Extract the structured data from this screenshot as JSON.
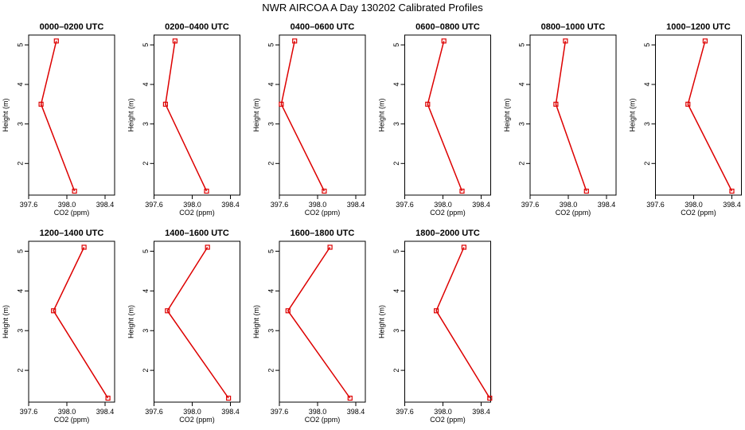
{
  "figure": {
    "title": "NWR AIRCOA A  Day 130202  Calibrated Profiles",
    "series_color": "#dd0000"
  },
  "chart_data": [
    {
      "type": "line",
      "title": "0000–0200 UTC",
      "xlabel": "CO2 (ppm)",
      "ylabel": "Height (m)",
      "xlim": [
        397.6,
        398.5
      ],
      "ylim": [
        1.2,
        5.25
      ],
      "xticks": [
        "397.6",
        "398.0",
        "398.4"
      ],
      "yticks": [
        "2",
        "3",
        "4",
        "5"
      ],
      "x": [
        398.08,
        397.73,
        397.89
      ],
      "y": [
        1.3,
        3.5,
        5.1
      ]
    },
    {
      "type": "line",
      "title": "0200–0400 UTC",
      "xlabel": "CO2 (ppm)",
      "ylabel": "Height (m)",
      "xlim": [
        397.6,
        398.5
      ],
      "ylim": [
        1.2,
        5.25
      ],
      "xticks": [
        "397.6",
        "398.0",
        "398.4"
      ],
      "yticks": [
        "2",
        "3",
        "4",
        "5"
      ],
      "x": [
        398.15,
        397.72,
        397.82
      ],
      "y": [
        1.3,
        3.5,
        5.1
      ]
    },
    {
      "type": "line",
      "title": "0400–0600 UTC",
      "xlabel": "CO2 (ppm)",
      "ylabel": "Height (m)",
      "xlim": [
        397.6,
        398.5
      ],
      "ylim": [
        1.2,
        5.25
      ],
      "xticks": [
        "397.6",
        "398.0",
        "398.4"
      ],
      "yticks": [
        "2",
        "3",
        "4",
        "5"
      ],
      "x": [
        398.07,
        397.62,
        397.76
      ],
      "y": [
        1.3,
        3.5,
        5.1
      ]
    },
    {
      "type": "line",
      "title": "0600–0800 UTC",
      "xlabel": "CO2 (ppm)",
      "ylabel": "Height (m)",
      "xlim": [
        397.6,
        398.5
      ],
      "ylim": [
        1.2,
        5.25
      ],
      "xticks": [
        "397.6",
        "398.0",
        "398.4"
      ],
      "yticks": [
        "2",
        "3",
        "4",
        "5"
      ],
      "x": [
        398.2,
        397.84,
        398.01
      ],
      "y": [
        1.3,
        3.5,
        5.1
      ]
    },
    {
      "type": "line",
      "title": "0800–1000 UTC",
      "xlabel": "CO2 (ppm)",
      "ylabel": "Height (m)",
      "xlim": [
        397.6,
        398.5
      ],
      "ylim": [
        1.2,
        5.25
      ],
      "xticks": [
        "397.6",
        "398.0",
        "398.4"
      ],
      "yticks": [
        "2",
        "3",
        "4",
        "5"
      ],
      "x": [
        398.19,
        397.87,
        397.97
      ],
      "y": [
        1.3,
        3.5,
        5.1
      ]
    },
    {
      "type": "line",
      "title": "1000–1200 UTC",
      "xlabel": "CO2 (ppm)",
      "ylabel": "Height (m)",
      "xlim": [
        397.6,
        398.5
      ],
      "ylim": [
        1.2,
        5.25
      ],
      "xticks": [
        "397.6",
        "398.0",
        "398.4"
      ],
      "yticks": [
        "2",
        "3",
        "4",
        "5"
      ],
      "x": [
        398.4,
        397.94,
        398.12
      ],
      "y": [
        1.3,
        3.5,
        5.1
      ]
    },
    {
      "type": "line",
      "title": "1200–1400 UTC",
      "xlabel": "CO2 (ppm)",
      "ylabel": "Height (m)",
      "xlim": [
        397.6,
        398.5
      ],
      "ylim": [
        1.2,
        5.25
      ],
      "xticks": [
        "397.6",
        "398.0",
        "398.4"
      ],
      "yticks": [
        "2",
        "3",
        "4",
        "5"
      ],
      "x": [
        398.43,
        397.86,
        398.18
      ],
      "y": [
        1.3,
        3.5,
        5.1
      ]
    },
    {
      "type": "line",
      "title": "1400–1600 UTC",
      "xlabel": "CO2 (ppm)",
      "ylabel": "Height (m)",
      "xlim": [
        397.6,
        398.5
      ],
      "ylim": [
        1.2,
        5.25
      ],
      "xticks": [
        "397.6",
        "398.0",
        "398.4"
      ],
      "yticks": [
        "2",
        "3",
        "4",
        "5"
      ],
      "x": [
        398.38,
        397.74,
        398.16
      ],
      "y": [
        1.3,
        3.5,
        5.1
      ]
    },
    {
      "type": "line",
      "title": "1600–1800 UTC",
      "xlabel": "CO2 (ppm)",
      "ylabel": "Height (m)",
      "xlim": [
        397.6,
        398.5
      ],
      "ylim": [
        1.2,
        5.25
      ],
      "xticks": [
        "397.6",
        "398.0",
        "398.4"
      ],
      "yticks": [
        "2",
        "3",
        "4",
        "5"
      ],
      "x": [
        398.34,
        397.69,
        398.13
      ],
      "y": [
        1.3,
        3.5,
        5.1
      ]
    },
    {
      "type": "line",
      "title": "1800–2000 UTC",
      "xlabel": "CO2 (ppm)",
      "ylabel": "Height (m)",
      "xlim": [
        397.6,
        398.5
      ],
      "ylim": [
        1.2,
        5.25
      ],
      "xticks": [
        "397.6",
        "398.0",
        "398.4"
      ],
      "yticks": [
        "2",
        "3",
        "4",
        "5"
      ],
      "x": [
        398.49,
        397.93,
        398.22
      ],
      "y": [
        1.3,
        3.5,
        5.1
      ]
    }
  ]
}
